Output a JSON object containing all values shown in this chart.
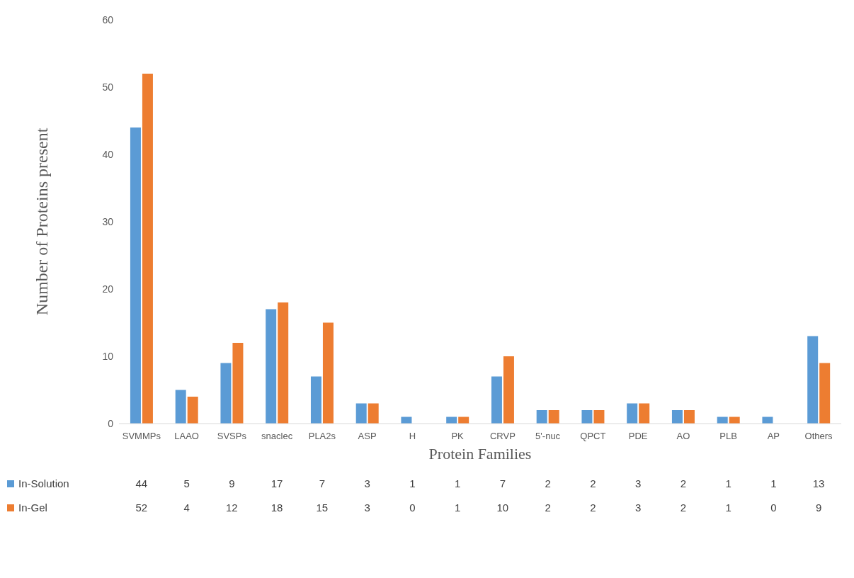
{
  "chart_data": {
    "type": "bar",
    "xlabel": "Protein Families",
    "ylabel": "Number of Proteins present",
    "categories": [
      "SVMMPs",
      "LAAO",
      "SVSPs",
      "snaclec",
      "PLA2s",
      "ASP",
      "H",
      "PK",
      "CRVP",
      "5'-nuc",
      "QPCT",
      "PDE",
      "AO",
      "PLB",
      "AP",
      "Others"
    ],
    "series": [
      {
        "name": "In-Solution",
        "color": "#5b9bd5",
        "values": [
          44,
          5,
          9,
          17,
          7,
          3,
          1,
          1,
          7,
          2,
          2,
          3,
          2,
          1,
          1,
          13
        ]
      },
      {
        "name": "In-Gel",
        "color": "#ed7d31",
        "values": [
          52,
          4,
          12,
          18,
          15,
          3,
          0,
          1,
          10,
          2,
          2,
          3,
          2,
          1,
          0,
          9
        ]
      }
    ],
    "ylim": [
      0,
      60
    ],
    "yticks": [
      0,
      10,
      20,
      30,
      40,
      50,
      60
    ],
    "grid": false,
    "legend": "bottom",
    "data_labels": true
  }
}
